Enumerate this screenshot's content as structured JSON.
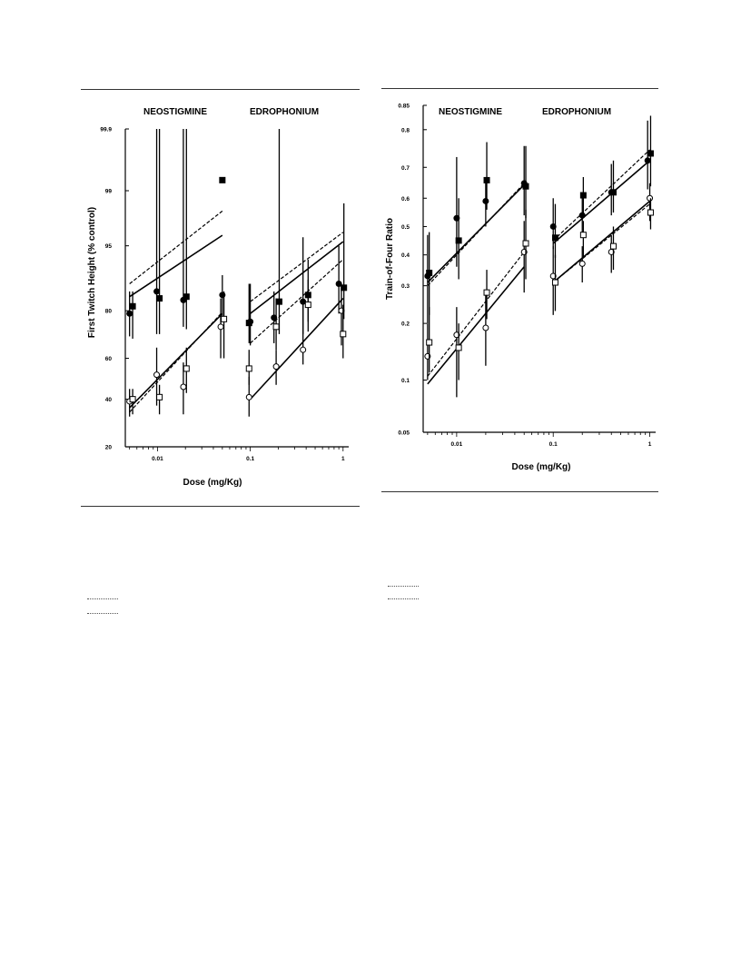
{
  "chart_data": [
    {
      "type": "scatter",
      "title": "",
      "panel_labels": [
        "NEOSTIGMINE",
        "EDROPHONIUM"
      ],
      "xlabel": "Dose (mg/Kg)",
      "ylabel": "First Twitch Height (% control)",
      "x_scale": "log",
      "xlim": [
        0.0045,
        1.15
      ],
      "x_ticks": [
        0.01,
        0.1,
        1
      ],
      "x_tick_labels": [
        "0.01",
        "0.1",
        "1"
      ],
      "y_scale": "probit",
      "ylim": [
        20,
        99.9
      ],
      "y_ticks": [
        20,
        40,
        60,
        80,
        95,
        99,
        99.9
      ],
      "y_tick_labels": [
        "20",
        "40",
        "60",
        "80",
        "95",
        "99",
        "99.9"
      ],
      "series": [
        {
          "marker": "filled-circle",
          "points": [
            {
              "x": 0.005,
              "y": 79,
              "lo": 70,
              "hi": 86
            },
            {
              "x": 0.0098,
              "y": 86,
              "lo": 71,
              "hi": 99.9
            },
            {
              "x": 0.019,
              "y": 83.5,
              "lo": 74,
              "hi": 99.9
            },
            {
              "x": 0.05,
              "y": 85,
              "lo": 76,
              "hi": 90
            },
            {
              "x": 0.1,
              "y": 76,
              "lo": 66,
              "hi": 88
            },
            {
              "x": 0.18,
              "y": 77.5,
              "lo": 67,
              "hi": 86
            },
            {
              "x": 0.37,
              "y": 83,
              "lo": 71,
              "hi": 96
            },
            {
              "x": 0.9,
              "y": 88,
              "lo": 79,
              "hi": 95
            }
          ]
        },
        {
          "marker": "filled-square",
          "points": [
            {
              "x": 0.0054,
              "y": 81.5,
              "lo": 69,
              "hi": 86
            },
            {
              "x": 0.0105,
              "y": 84,
              "lo": 71,
              "hi": 99.9
            },
            {
              "x": 0.0205,
              "y": 84.5,
              "lo": 73,
              "hi": 99.9
            },
            {
              "x": 0.05,
              "y": 99.3,
              "lo": 99.3,
              "hi": 99.3
            },
            {
              "x": 0.097,
              "y": 75.5,
              "lo": 67,
              "hi": 88
            },
            {
              "x": 0.205,
              "y": 83,
              "lo": 71,
              "hi": 99.9
            },
            {
              "x": 0.42,
              "y": 85,
              "lo": 76,
              "hi": 89
            },
            {
              "x": 1.02,
              "y": 87,
              "lo": 77,
              "hi": 98.5
            }
          ]
        },
        {
          "marker": "open-circle",
          "points": [
            {
              "x": 0.005,
              "y": 39,
              "lo": 32,
              "hi": 45
            },
            {
              "x": 0.0098,
              "y": 52,
              "lo": 37,
              "hi": 65
            },
            {
              "x": 0.019,
              "y": 46,
              "lo": 33,
              "hi": 58
            },
            {
              "x": 0.048,
              "y": 74,
              "lo": 60,
              "hi": 84
            },
            {
              "x": 0.097,
              "y": 41,
              "lo": 32,
              "hi": 51
            },
            {
              "x": 0.19,
              "y": 56,
              "lo": 47,
              "hi": 64
            },
            {
              "x": 0.37,
              "y": 64,
              "lo": 57,
              "hi": 82
            },
            {
              "x": 0.96,
              "y": 80,
              "lo": 66,
              "hi": 88
            }
          ]
        },
        {
          "marker": "open-square",
          "points": [
            {
              "x": 0.0054,
              "y": 40,
              "lo": 33,
              "hi": 45
            },
            {
              "x": 0.0105,
              "y": 41,
              "lo": 33,
              "hi": 47
            },
            {
              "x": 0.0205,
              "y": 55,
              "lo": 43,
              "hi": 65
            },
            {
              "x": 0.052,
              "y": 77,
              "lo": 60,
              "hi": 86
            },
            {
              "x": 0.097,
              "y": 55,
              "lo": 47,
              "hi": 64
            },
            {
              "x": 0.19,
              "y": 74,
              "lo": 64,
              "hi": 84
            },
            {
              "x": 0.42,
              "y": 82,
              "lo": 72,
              "hi": 93
            },
            {
              "x": 1.0,
              "y": 71,
              "lo": 60,
              "hi": 82
            }
          ]
        }
      ],
      "fit_lines": [
        {
          "style": "dashed",
          "x": [
            0.005,
            0.05
          ],
          "y": [
            88,
            98.1
          ]
        },
        {
          "style": "solid",
          "x": [
            0.005,
            0.05
          ],
          "y": [
            84.5,
            96.2
          ]
        },
        {
          "style": "dashed",
          "x": [
            0.005,
            0.05
          ],
          "y": [
            34,
            79.5
          ]
        },
        {
          "style": "solid",
          "x": [
            0.005,
            0.05
          ],
          "y": [
            36,
            79
          ]
        },
        {
          "style": "dashed",
          "x": [
            0.1,
            1
          ],
          "y": [
            83,
            96.5
          ]
        },
        {
          "style": "solid",
          "x": [
            0.1,
            1
          ],
          "y": [
            79,
            95.5
          ]
        },
        {
          "style": "dashed",
          "x": [
            0.1,
            1
          ],
          "y": [
            67,
            93
          ]
        },
        {
          "style": "solid",
          "x": [
            0.1,
            1
          ],
          "y": [
            40,
            84
          ]
        }
      ]
    },
    {
      "type": "scatter",
      "title": "",
      "panel_labels": [
        "NEOSTIGMINE",
        "EDROPHONIUM"
      ],
      "xlabel": "Dose (mg/Kg)",
      "ylabel": "Train-of-Four Ratio",
      "x_scale": "log",
      "xlim": [
        0.0045,
        1.15
      ],
      "x_ticks": [
        0.01,
        0.1,
        1
      ],
      "x_tick_labels": [
        "0.01",
        "0.1",
        "1"
      ],
      "y_scale": "logit",
      "ylim": [
        0.05,
        0.85
      ],
      "y_ticks": [
        0.05,
        0.1,
        0.2,
        0.3,
        0.4,
        0.5,
        0.6,
        0.7,
        0.8,
        0.85
      ],
      "y_tick_labels": [
        "0.05",
        "0.1",
        "0.2",
        "0.3",
        "0.4",
        "0.5",
        "0.6",
        "0.7",
        "0.8",
        "0.85"
      ],
      "series": [
        {
          "marker": "filled-circle",
          "points": [
            {
              "x": 0.005,
              "y": 0.33,
              "lo": 0.2,
              "hi": 0.47
            },
            {
              "x": 0.01,
              "y": 0.53,
              "lo": 0.36,
              "hi": 0.73
            },
            {
              "x": 0.02,
              "y": 0.59,
              "lo": 0.5,
              "hi": 0.66
            },
            {
              "x": 0.05,
              "y": 0.65,
              "lo": 0.54,
              "hi": 0.76
            },
            {
              "x": 0.1,
              "y": 0.5,
              "lo": 0.42,
              "hi": 0.6
            },
            {
              "x": 0.2,
              "y": 0.54,
              "lo": 0.47,
              "hi": 0.62
            },
            {
              "x": 0.4,
              "y": 0.62,
              "lo": 0.54,
              "hi": 0.71
            },
            {
              "x": 0.95,
              "y": 0.72,
              "lo": 0.63,
              "hi": 0.82
            }
          ]
        },
        {
          "marker": "filled-square",
          "points": [
            {
              "x": 0.0052,
              "y": 0.34,
              "lo": 0.22,
              "hi": 0.48
            },
            {
              "x": 0.0105,
              "y": 0.45,
              "lo": 0.32,
              "hi": 0.6
            },
            {
              "x": 0.0205,
              "y": 0.66,
              "lo": 0.56,
              "hi": 0.77
            },
            {
              "x": 0.052,
              "y": 0.64,
              "lo": 0.53,
              "hi": 0.76
            },
            {
              "x": 0.105,
              "y": 0.46,
              "lo": 0.39,
              "hi": 0.58
            },
            {
              "x": 0.205,
              "y": 0.61,
              "lo": 0.54,
              "hi": 0.67
            },
            {
              "x": 0.42,
              "y": 0.62,
              "lo": 0.55,
              "hi": 0.72
            },
            {
              "x": 1.02,
              "y": 0.74,
              "lo": 0.64,
              "hi": 0.83
            }
          ]
        },
        {
          "marker": "open-circle",
          "points": [
            {
              "x": 0.005,
              "y": 0.135,
              "lo": 0.1,
              "hi": 0.2
            },
            {
              "x": 0.01,
              "y": 0.175,
              "lo": 0.08,
              "hi": 0.24
            },
            {
              "x": 0.02,
              "y": 0.19,
              "lo": 0.12,
              "hi": 0.28
            },
            {
              "x": 0.05,
              "y": 0.41,
              "lo": 0.28,
              "hi": 0.52
            },
            {
              "x": 0.1,
              "y": 0.33,
              "lo": 0.22,
              "hi": 0.43
            },
            {
              "x": 0.2,
              "y": 0.37,
              "lo": 0.31,
              "hi": 0.43
            },
            {
              "x": 0.4,
              "y": 0.41,
              "lo": 0.34,
              "hi": 0.47
            },
            {
              "x": 1.0,
              "y": 0.6,
              "lo": 0.52,
              "hi": 0.65
            }
          ]
        },
        {
          "marker": "open-square",
          "points": [
            {
              "x": 0.0052,
              "y": 0.16,
              "lo": 0.11,
              "hi": 0.24
            },
            {
              "x": 0.0105,
              "y": 0.15,
              "lo": 0.1,
              "hi": 0.2
            },
            {
              "x": 0.0205,
              "y": 0.28,
              "lo": 0.21,
              "hi": 0.35
            },
            {
              "x": 0.052,
              "y": 0.44,
              "lo": 0.32,
              "hi": 0.56
            },
            {
              "x": 0.105,
              "y": 0.31,
              "lo": 0.23,
              "hi": 0.4
            },
            {
              "x": 0.205,
              "y": 0.47,
              "lo": 0.39,
              "hi": 0.52
            },
            {
              "x": 0.42,
              "y": 0.43,
              "lo": 0.35,
              "hi": 0.5
            },
            {
              "x": 1.02,
              "y": 0.55,
              "lo": 0.49,
              "hi": 0.6
            }
          ]
        }
      ],
      "fit_lines": [
        {
          "style": "dashed",
          "x": [
            0.005,
            0.05
          ],
          "y": [
            0.3,
            0.65
          ]
        },
        {
          "style": "solid",
          "x": [
            0.005,
            0.05
          ],
          "y": [
            0.31,
            0.645
          ]
        },
        {
          "style": "dashed",
          "x": [
            0.005,
            0.05
          ],
          "y": [
            0.105,
            0.41
          ]
        },
        {
          "style": "solid",
          "x": [
            0.005,
            0.05
          ],
          "y": [
            0.095,
            0.36
          ]
        },
        {
          "style": "dashed",
          "x": [
            0.1,
            1
          ],
          "y": [
            0.45,
            0.75
          ]
        },
        {
          "style": "solid",
          "x": [
            0.1,
            1
          ],
          "y": [
            0.44,
            0.72
          ]
        },
        {
          "style": "dashed",
          "x": [
            0.1,
            1
          ],
          "y": [
            0.31,
            0.58
          ]
        },
        {
          "style": "solid",
          "x": [
            0.1,
            1
          ],
          "y": [
            0.31,
            0.59
          ]
        }
      ]
    }
  ]
}
